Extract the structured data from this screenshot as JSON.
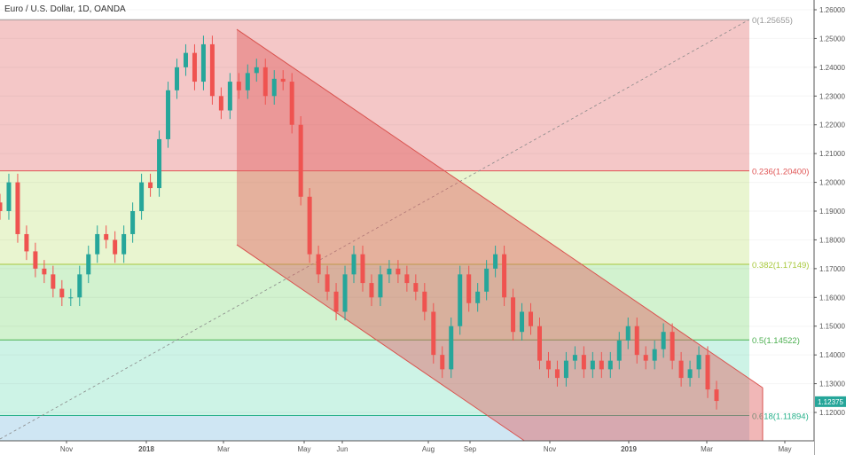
{
  "header": {
    "title": "Euro / U.S. Dollar, 1D, OANDA"
  },
  "chart_data": {
    "type": "candlestick",
    "title": "Euro / U.S. Dollar, 1D, OANDA",
    "ylim": [
      1.105,
      1.265
    ],
    "y_ticks": [
      1.26,
      1.25,
      1.24,
      1.23,
      1.22,
      1.21,
      1.2,
      1.19,
      1.18,
      1.17,
      1.16,
      1.15,
      1.14,
      1.13,
      1.12
    ],
    "y_tick_labels": [
      "1.26000",
      "1.25000",
      "1.24000",
      "1.23000",
      "1.22000",
      "1.21000",
      "1.20000",
      "1.19000",
      "1.18000",
      "1.17000",
      "1.16000",
      "1.15000",
      "1.14000",
      "1.13000",
      "1.12000"
    ],
    "x_tick_labels": [
      {
        "label": "Nov",
        "bold": false
      },
      {
        "label": "2018",
        "bold": true
      },
      {
        "label": "Mar",
        "bold": false
      },
      {
        "label": "May",
        "bold": false
      },
      {
        "label": "Jun",
        "bold": false
      },
      {
        "label": "Aug",
        "bold": false
      },
      {
        "label": "Sep",
        "bold": false
      },
      {
        "label": "Nov",
        "bold": false
      },
      {
        "label": "2019",
        "bold": true
      },
      {
        "label": "Mar",
        "bold": false
      },
      {
        "label": "May",
        "bold": false
      }
    ],
    "closes": [
      1.19,
      1.2,
      1.182,
      1.176,
      1.17,
      1.168,
      1.163,
      1.16,
      1.16,
      1.168,
      1.175,
      1.182,
      1.18,
      1.175,
      1.182,
      1.19,
      1.2,
      1.198,
      1.215,
      1.232,
      1.24,
      1.245,
      1.235,
      1.248,
      1.23,
      1.225,
      1.235,
      1.232,
      1.238,
      1.24,
      1.23,
      1.236,
      1.235,
      1.22,
      1.195,
      1.175,
      1.168,
      1.162,
      1.155,
      1.168,
      1.175,
      1.165,
      1.16,
      1.168,
      1.17,
      1.168,
      1.165,
      1.162,
      1.155,
      1.14,
      1.135,
      1.15,
      1.168,
      1.158,
      1.162,
      1.17,
      1.175,
      1.16,
      1.148,
      1.155,
      1.15,
      1.138,
      1.135,
      1.132,
      1.138,
      1.14,
      1.135,
      1.138,
      1.135,
      1.138,
      1.145,
      1.15,
      1.14,
      1.138,
      1.142,
      1.148,
      1.138,
      1.132,
      1.135,
      1.14,
      1.128,
      1.124
    ],
    "current_price": "1.12375",
    "colors": {
      "up": "#26a69a",
      "down": "#ef5350",
      "price_label": "#26a69a"
    },
    "fibonacci": [
      {
        "level": "0",
        "price": 1.25655,
        "label": "0(1.25655)",
        "color": "#999999",
        "fill": "#f4c7c7"
      },
      {
        "level": "0.236",
        "price": 1.204,
        "label": "0.236(1.20400)",
        "color": "#e05555",
        "fill": "#e9f5d0"
      },
      {
        "level": "0.382",
        "price": 1.17149,
        "label": "0.382(1.17149)",
        "color": "#a8c83c",
        "fill": "#d2f2cf"
      },
      {
        "level": "0.5",
        "price": 1.14522,
        "label": "0.5(1.14522)",
        "color": "#4caf50",
        "fill": "#cdf3e6"
      },
      {
        "level": "0.618",
        "price": 1.11894,
        "label": "0.618(1.11894)",
        "color": "#26b08a",
        "fill": "#cfe6f3"
      }
    ],
    "channel": {
      "upper_start": 1.2532,
      "upper_end": 1.1286,
      "lower_start": 1.1783,
      "color": "#d9534f"
    }
  }
}
